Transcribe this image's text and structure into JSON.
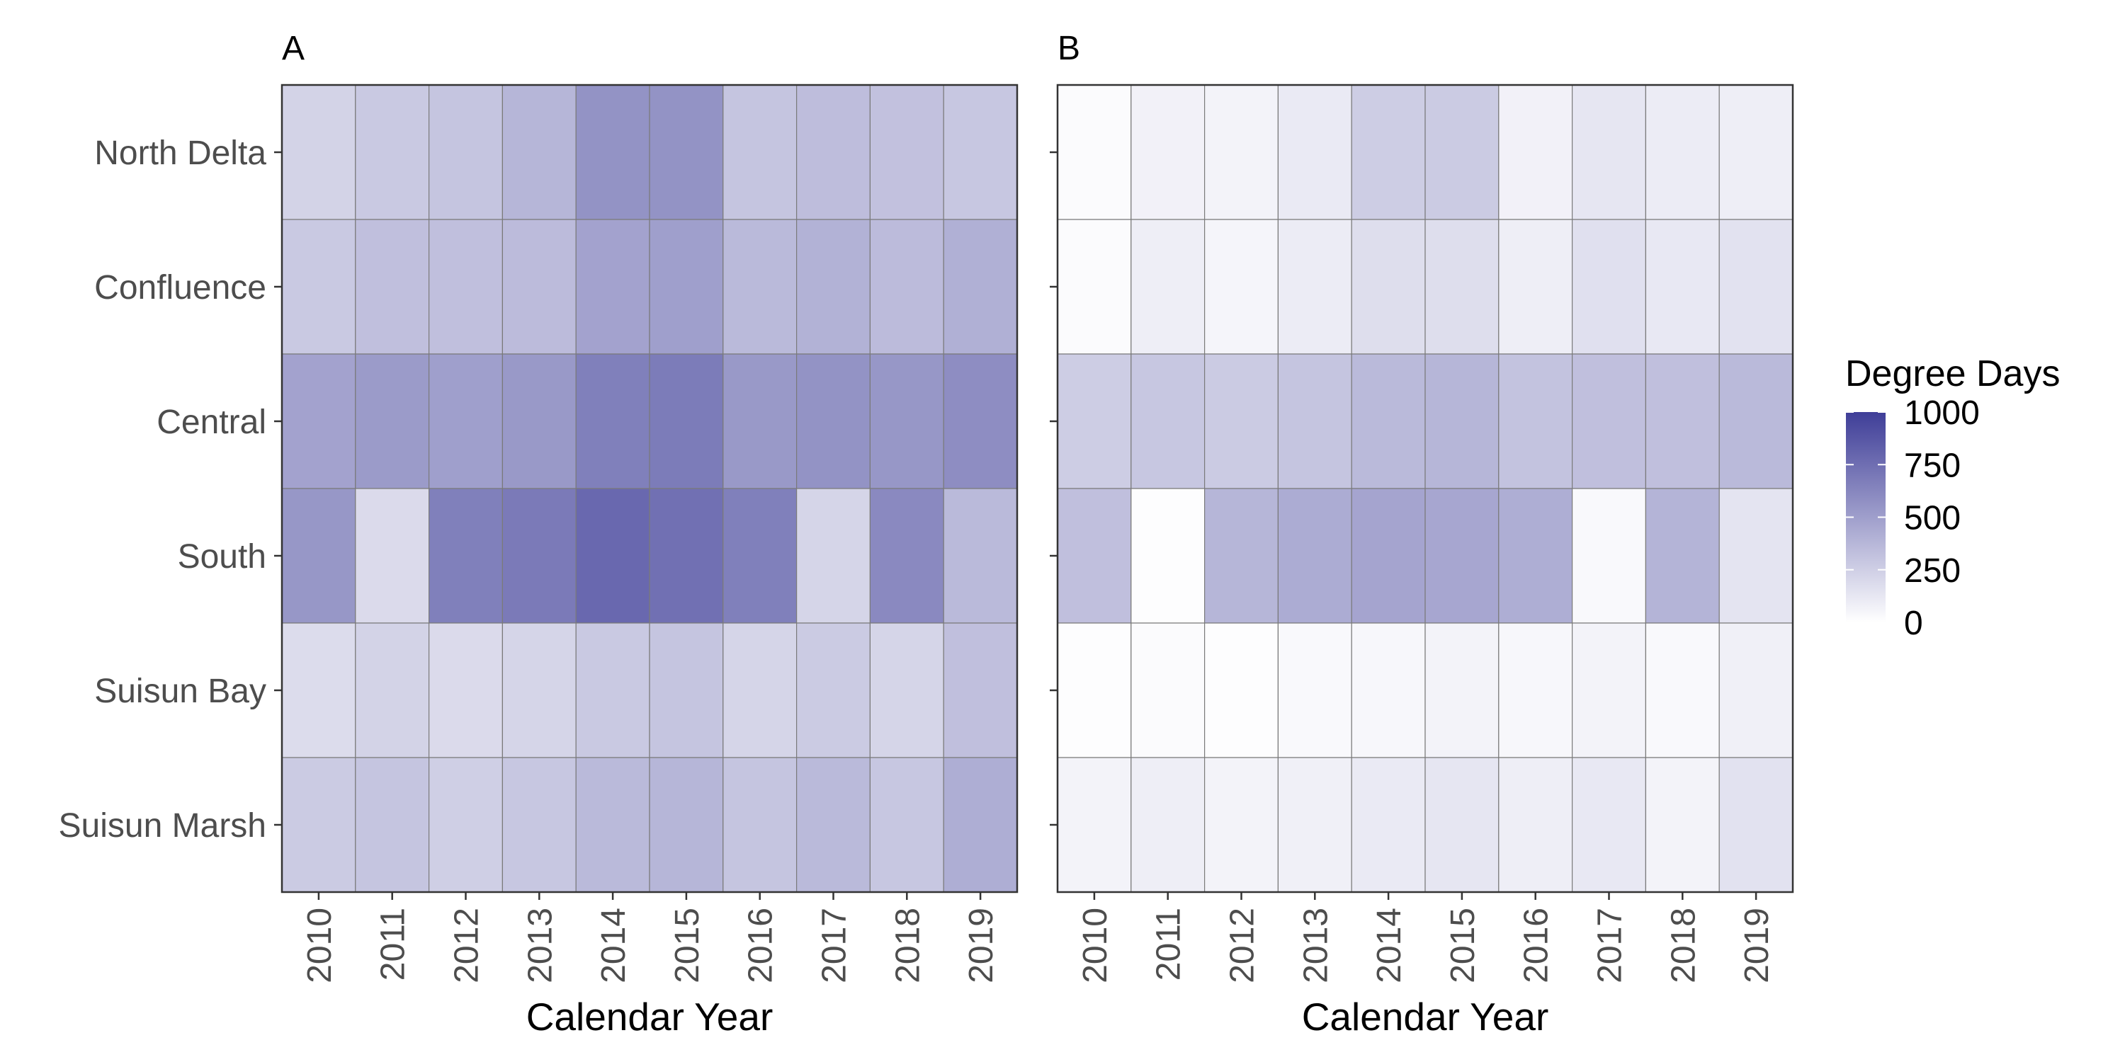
{
  "chart_data": [
    {
      "type": "heatmap",
      "panel": "A",
      "xlabel": "Calendar Year",
      "ylabel": "",
      "x": [
        "2010",
        "2011",
        "2012",
        "2013",
        "2014",
        "2015",
        "2016",
        "2017",
        "2018",
        "2019"
      ],
      "y": [
        "North Delta",
        "Confluence",
        "Central",
        "South",
        "Suisun Bay",
        "Suisun Marsh"
      ],
      "values": [
        [
          230,
          280,
          300,
          380,
          560,
          560,
          300,
          340,
          320,
          290
        ],
        [
          280,
          330,
          330,
          350,
          480,
          500,
          360,
          400,
          350,
          410
        ],
        [
          480,
          520,
          500,
          530,
          660,
          680,
          530,
          560,
          540,
          590
        ],
        [
          540,
          190,
          660,
          690,
          780,
          740,
          660,
          220,
          610,
          360
        ],
        [
          180,
          230,
          190,
          220,
          280,
          300,
          220,
          270,
          220,
          330
        ],
        [
          270,
          300,
          250,
          290,
          360,
          380,
          300,
          360,
          290,
          420
        ]
      ],
      "grid": false
    },
    {
      "type": "heatmap",
      "panel": "B",
      "xlabel": "Calendar Year",
      "ylabel": "",
      "x": [
        "2010",
        "2011",
        "2012",
        "2013",
        "2014",
        "2015",
        "2016",
        "2017",
        "2018",
        "2019"
      ],
      "y": [
        "North Delta",
        "Confluence",
        "Central",
        "South",
        "Suisun Bay",
        "Suisun Marsh"
      ],
      "values": [
        [
          20,
          70,
          60,
          110,
          260,
          270,
          70,
          130,
          100,
          90
        ],
        [
          20,
          90,
          50,
          100,
          170,
          170,
          90,
          160,
          120,
          150
        ],
        [
          260,
          290,
          270,
          300,
          360,
          380,
          310,
          330,
          330,
          360
        ],
        [
          330,
          10,
          380,
          430,
          470,
          460,
          420,
          30,
          390,
          140
        ],
        [
          10,
          20,
          10,
          30,
          40,
          60,
          40,
          60,
          30,
          80
        ],
        [
          60,
          90,
          60,
          80,
          110,
          130,
          90,
          120,
          60,
          150
        ]
      ],
      "grid": false
    }
  ],
  "legend": {
    "title": "Degree  Days",
    "placement": "right",
    "min": 0,
    "max": 1000,
    "ticks": [
      "1000",
      "750",
      "500",
      "250",
      "0"
    ],
    "color_low": "#ffffff",
    "color_high": "#3f3e98"
  },
  "colors": {
    "cell_border": "#7a7a7a",
    "panel_border": "#333333"
  }
}
